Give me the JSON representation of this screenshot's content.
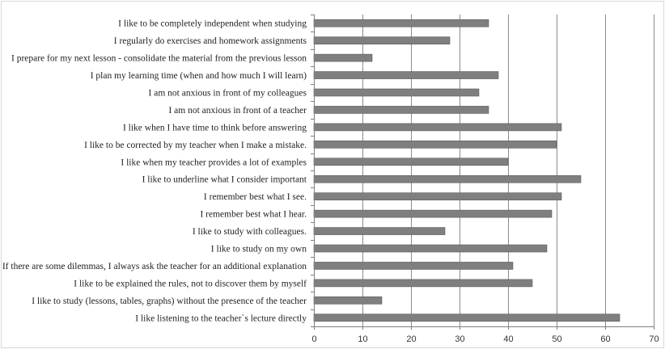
{
  "chart_data": {
    "type": "bar",
    "orientation": "horizontal",
    "title": "",
    "xlabel": "",
    "ylabel": "",
    "categories": [
      "I like to be completely independent when studying",
      "I regularly do exercises and homework assignments",
      "I prepare for my next lesson - consolidate the material from the previous lesson",
      "I plan my learning time (when and how much I will learn)",
      "I am not anxious in front of my colleagues",
      "I am not anxious in front of a teacher",
      "I like when I have time to think before answering",
      "I like to be corrected by my teacher when I make a mistake.",
      "I like when my teacher provides a lot of examples",
      "I like to underline what I consider important",
      "I remember best what I see.",
      "I remember best what I hear.",
      "I like to study with colleagues.",
      "I like to study on my own",
      "If there are some dilemmas, I always ask the teacher for an additional explanation",
      "I like to be explained the rules, not to discover them by myself",
      "I like to study (lessons, tables, graphs) without the presence of the teacher",
      "I like listening to the teacher`s lecture directly"
    ],
    "values": [
      36,
      28,
      12,
      38,
      34,
      36,
      51,
      50,
      40,
      55,
      51,
      49,
      27,
      48,
      41,
      45,
      14,
      63
    ],
    "xlim": [
      0,
      70
    ],
    "xticks": [
      0,
      10,
      20,
      30,
      40,
      50,
      60,
      70
    ],
    "grid": "vertical",
    "legend": "none",
    "colors": {
      "bar": "#7f7f7f",
      "bar_edge": "#5a5a5a",
      "grid": "#8c8c8c",
      "axis": "#7f7f7f"
    }
  }
}
